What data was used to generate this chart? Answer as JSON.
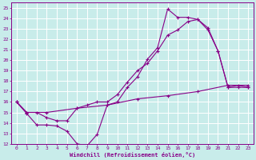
{
  "xlabel": "Windchill (Refroidissement éolien,°C)",
  "bg_color": "#c8ecea",
  "line_color": "#880088",
  "grid_color": "#ffffff",
  "xlim": [
    -0.5,
    23.5
  ],
  "ylim": [
    12,
    25.5
  ],
  "xticks": [
    0,
    1,
    2,
    3,
    4,
    5,
    6,
    7,
    8,
    9,
    10,
    11,
    12,
    13,
    14,
    15,
    16,
    17,
    18,
    19,
    20,
    21,
    22,
    23
  ],
  "yticks": [
    12,
    13,
    14,
    15,
    16,
    17,
    18,
    19,
    20,
    21,
    22,
    23,
    24,
    25
  ],
  "line1_x": [
    0,
    1,
    2,
    3,
    4,
    5,
    6,
    7,
    8,
    9,
    10,
    11,
    12,
    13,
    14,
    15,
    16,
    17,
    18,
    19,
    20,
    21,
    22,
    23
  ],
  "line1_y": [
    16.0,
    14.9,
    13.8,
    13.8,
    13.7,
    13.2,
    12.0,
    11.8,
    12.9,
    15.7,
    16.0,
    17.4,
    18.4,
    20.1,
    21.2,
    24.9,
    24.1,
    24.1,
    23.9,
    23.1,
    20.9,
    17.4,
    17.4,
    17.4
  ],
  "line2_x": [
    0,
    1,
    2,
    3,
    4,
    5,
    6,
    7,
    8,
    9,
    10,
    11,
    12,
    13,
    14,
    15,
    16,
    17,
    18,
    19,
    20,
    21,
    22,
    23
  ],
  "line2_y": [
    16.0,
    15.0,
    15.0,
    14.5,
    14.2,
    14.2,
    15.4,
    15.7,
    16.0,
    16.0,
    16.7,
    17.9,
    19.0,
    19.7,
    20.9,
    22.4,
    22.9,
    23.7,
    23.9,
    22.9,
    20.9,
    17.4,
    17.6,
    17.4
  ],
  "line3_x": [
    0,
    1,
    3,
    6,
    9,
    12,
    15,
    18,
    21,
    23
  ],
  "line3_y": [
    16.0,
    15.0,
    15.0,
    15.4,
    15.7,
    16.3,
    16.6,
    17.0,
    17.6,
    17.6
  ]
}
